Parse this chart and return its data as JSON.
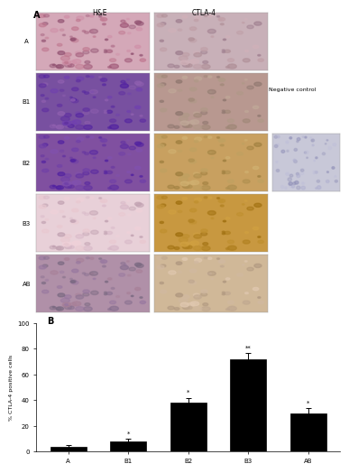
{
  "bar_categories": [
    "A",
    "B1",
    "B2",
    "B3",
    "AB"
  ],
  "bar_values": [
    4,
    8,
    38,
    72,
    30
  ],
  "bar_color": "#000000",
  "bar_error": [
    1,
    2,
    4,
    5,
    4
  ],
  "ylabel": "% CTLA-4 positive cells",
  "ylim": [
    0,
    100
  ],
  "yticks": [
    0,
    20,
    40,
    60,
    80,
    100
  ],
  "panel_label_B": "B",
  "panel_label_A": "A",
  "col_labels": [
    "H&E",
    "CTLA-4"
  ],
  "row_labels": [
    "A",
    "B1",
    "B2",
    "B3",
    "AB"
  ],
  "neg_ctrl_label": "Negative control",
  "background_color": "#ffffff",
  "figure_width": 3.51,
  "figure_height": 5.12,
  "asterisk_positions": {
    "B1": "*",
    "B2": "*",
    "B3": "**",
    "AB": "*"
  },
  "hne_colors": [
    [
      "#d4a0b0",
      "#c8a0c8",
      "#9060a0",
      "#b880a0"
    ],
    [
      "#8050a0",
      "#9060b0",
      "#7050a0",
      "#6040a0"
    ],
    [
      "#9060a0",
      "#8050a0",
      "#7050a0",
      "#6040a0"
    ],
    [
      "#e0b0c0",
      "#d8a8c0",
      "#c090c0",
      "#b080c0"
    ],
    [
      "#a080a0",
      "#9070a0",
      "#b080b0",
      "#c090b0"
    ]
  ],
  "ctla4_colors": [
    [
      "#d4b8c0",
      "#c8a8b8",
      "#d8c0c8",
      "#c0a8b0"
    ],
    [
      "#c0a8b0",
      "#b89898",
      "#c0a8a0",
      "#b09090"
    ],
    [
      "#c8a870",
      "#c0a068",
      "#b89060",
      "#c8a870"
    ],
    [
      "#c8a050",
      "#c09040",
      "#b88030",
      "#c8a050"
    ],
    [
      "#d4c0b0",
      "#c8b0a0",
      "#c0a890",
      "#d0b8a8"
    ]
  ]
}
